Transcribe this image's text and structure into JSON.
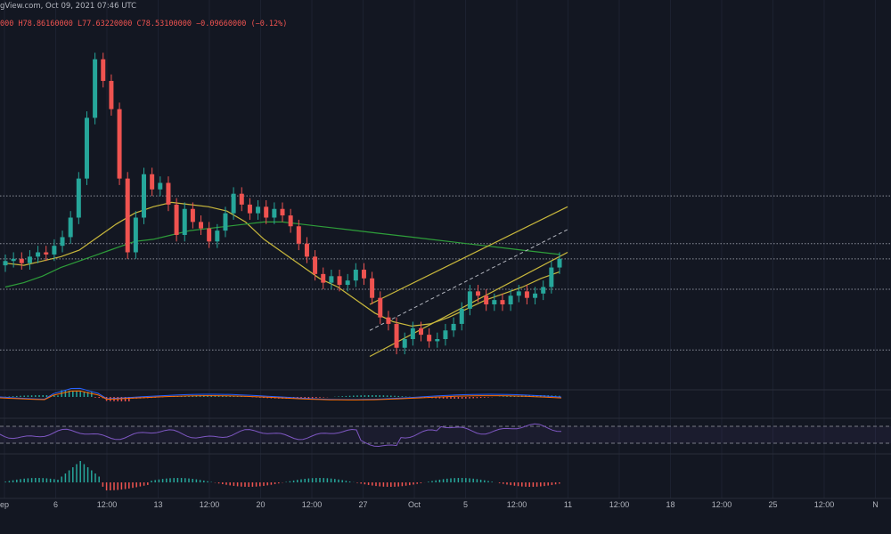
{
  "header": {
    "attribution": "gView.com, Oct 09, 2021 07:46 UTC",
    "ohlc_text": "000  H78.86160000  L77.63220000  C78.53100000  −0.09660000 (−0.12%)"
  },
  "chart_data": {
    "type": "candlestick",
    "x_tick_labels": [
      "ep",
      "6",
      "12:00",
      "13",
      "12:00",
      "20",
      "12:00",
      "27",
      "Oct",
      "5",
      "12:00",
      "11",
      "12:00",
      "18",
      "12:00",
      "25",
      "12:00",
      "N"
    ],
    "ylim": [
      40,
      200
    ],
    "price_candles": [
      {
        "o": 90,
        "c": 92
      },
      {
        "o": 92,
        "c": 93
      },
      {
        "o": 93,
        "c": 91
      },
      {
        "o": 91,
        "c": 94
      },
      {
        "o": 94,
        "c": 96
      },
      {
        "o": 96,
        "c": 95
      },
      {
        "o": 95,
        "c": 99
      },
      {
        "o": 99,
        "c": 103
      },
      {
        "o": 103,
        "c": 112
      },
      {
        "o": 112,
        "c": 130
      },
      {
        "o": 130,
        "c": 158
      },
      {
        "o": 158,
        "c": 185
      },
      {
        "o": 185,
        "c": 175
      },
      {
        "o": 175,
        "c": 162
      },
      {
        "o": 162,
        "c": 130
      },
      {
        "o": 130,
        "c": 96
      },
      {
        "o": 96,
        "c": 112
      },
      {
        "o": 112,
        "c": 132
      },
      {
        "o": 132,
        "c": 125
      },
      {
        "o": 125,
        "c": 128
      },
      {
        "o": 128,
        "c": 118
      },
      {
        "o": 118,
        "c": 104
      },
      {
        "o": 104,
        "c": 116
      },
      {
        "o": 116,
        "c": 110
      },
      {
        "o": 110,
        "c": 107
      },
      {
        "o": 107,
        "c": 101
      },
      {
        "o": 101,
        "c": 106
      },
      {
        "o": 106,
        "c": 114
      },
      {
        "o": 114,
        "c": 123
      },
      {
        "o": 123,
        "c": 118
      },
      {
        "o": 118,
        "c": 114
      },
      {
        "o": 114,
        "c": 117
      },
      {
        "o": 117,
        "c": 112
      },
      {
        "o": 112,
        "c": 116
      },
      {
        "o": 116,
        "c": 113
      },
      {
        "o": 113,
        "c": 108
      },
      {
        "o": 108,
        "c": 100
      },
      {
        "o": 100,
        "c": 94
      },
      {
        "o": 94,
        "c": 86
      },
      {
        "o": 86,
        "c": 82
      },
      {
        "o": 82,
        "c": 85
      },
      {
        "o": 85,
        "c": 81
      },
      {
        "o": 81,
        "c": 83
      },
      {
        "o": 83,
        "c": 88
      },
      {
        "o": 88,
        "c": 84
      },
      {
        "o": 84,
        "c": 75
      },
      {
        "o": 75,
        "c": 66
      },
      {
        "o": 66,
        "c": 63
      },
      {
        "o": 63,
        "c": 52
      },
      {
        "o": 52,
        "c": 56
      },
      {
        "o": 56,
        "c": 61
      },
      {
        "o": 61,
        "c": 58
      },
      {
        "o": 58,
        "c": 55
      },
      {
        "o": 55,
        "c": 56
      },
      {
        "o": 56,
        "c": 60
      },
      {
        "o": 60,
        "c": 63
      },
      {
        "o": 63,
        "c": 70
      },
      {
        "o": 70,
        "c": 78
      },
      {
        "o": 78,
        "c": 76
      },
      {
        "o": 76,
        "c": 72
      },
      {
        "o": 72,
        "c": 74
      },
      {
        "o": 74,
        "c": 72
      },
      {
        "o": 72,
        "c": 76
      },
      {
        "o": 76,
        "c": 78
      },
      {
        "o": 78,
        "c": 75
      },
      {
        "o": 75,
        "c": 77
      },
      {
        "o": 77,
        "c": 80
      },
      {
        "o": 80,
        "c": 89
      },
      {
        "o": 89,
        "c": 93
      }
    ],
    "moving_averages": [
      {
        "color": "#c9b83c",
        "points": [
          91,
          90,
          92,
          94,
          97,
          103,
          109,
          114,
          117,
          119,
          118,
          117,
          115,
          110,
          102,
          96,
          90,
          84,
          80,
          74,
          68,
          64,
          62,
          63,
          66,
          70,
          74,
          77,
          80,
          84,
          87
        ]
      },
      {
        "color": "#2e9e3a",
        "points": [
          80,
          82,
          85,
          89,
          92,
          95,
          98,
          101,
          102,
          104,
          106,
          107,
          108,
          109,
          110,
          110,
          109,
          108,
          107,
          106,
          105,
          104,
          103,
          102,
          101,
          100,
          99,
          98,
          97,
          96,
          95
        ]
      }
    ],
    "channel_lines": [
      {
        "x": [
          0.415,
          0.637
        ],
        "y": [
          72,
          117
        ],
        "color": "#c9b83c"
      },
      {
        "x": [
          0.415,
          0.637
        ],
        "y": [
          48,
          96
        ],
        "color": "#c9b83c"
      }
    ],
    "horizontal_levels": [
      122,
      100,
      93,
      79,
      51
    ]
  }
}
